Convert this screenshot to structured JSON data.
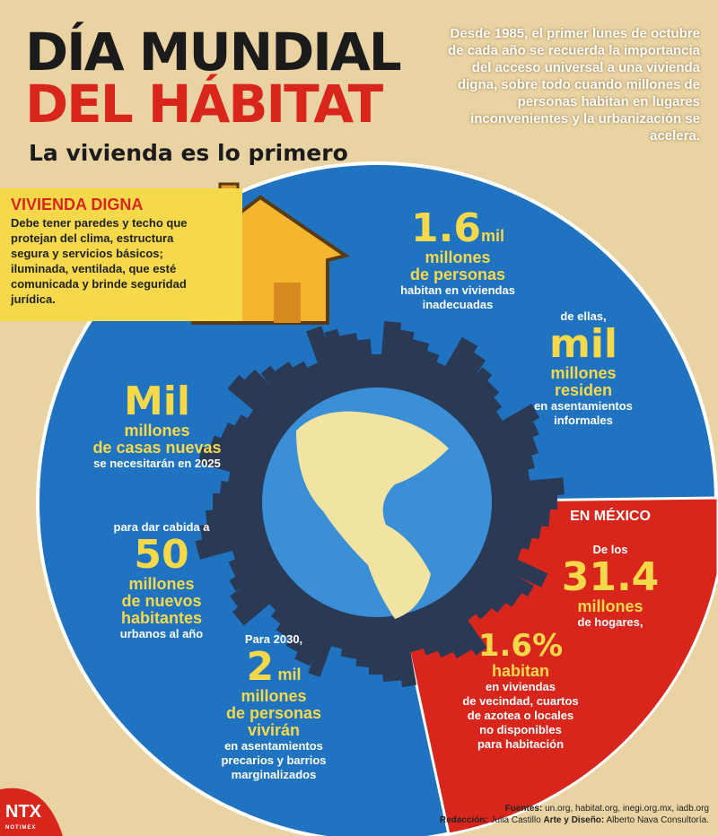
{
  "header": {
    "title_line1": "DÍA MUNDIAL",
    "title_line2": "DEL HÁBITAT",
    "subtitle": "La vivienda es lo primero",
    "intro": "Desde 1985, el primer lunes de octubre de cada año se recuerda la importancia del acceso universal a una vivienda digna, sobre todo cuando millones de personas habitan en lugares inconvenientes y la urbanización se acelera."
  },
  "vivienda": {
    "title": "VIVIENDA DIGNA",
    "text": "Debe tener paredes y techo que protejan del clima, estructura segura y servicios básicos; iluminada, ventilada, que esté comunicada y brinde seguridad jurídica."
  },
  "stats": {
    "s1": {
      "num": "1.6",
      "unit": "mil",
      "l1": "millones",
      "l2": "de personas",
      "l3": "habitan en viviendas",
      "l4": "inadecuadas"
    },
    "s2": {
      "pre": "de ellas,",
      "num": "mil",
      "l1": "millones",
      "l2": "residen",
      "l3": "en asentamientos",
      "l4": "informales"
    },
    "s3": {
      "num": "Mil",
      "l1": "millones",
      "l2": "de casas nuevas",
      "l3": "se necesitarán en 2025"
    },
    "s4": {
      "pre": "para dar cabida a",
      "num": "50",
      "l1": "millones",
      "l2": "de nuevos",
      "l3": "habitantes",
      "l4": "urbanos al año"
    },
    "s5": {
      "pre": "Para 2030,",
      "num": "2",
      "unit": "mil",
      "l1": "millones",
      "l2": "de personas",
      "l3": "vivirán",
      "l4": "en asentamientos",
      "l5": "precarios y barrios",
      "l6": "marginalizados"
    }
  },
  "mexico": {
    "title": "EN MÉXICO",
    "pre": "De los",
    "num": "31.4",
    "l1": "millones",
    "l2": "de hogares,",
    "num2": "1.6%",
    "l3": "habitan",
    "l4": "en viviendas",
    "l5": "de vecindad, cuartos",
    "l6": "de azotea o locales",
    "l7": "no disponibles",
    "l8": "para habitación"
  },
  "footer": {
    "fuentes_label": "Fuentes:",
    "fuentes": "un.org, habitat.org, inegi.org.mx, iadb.org",
    "redaccion_label": "Redacción:",
    "redaccion": "Julia Castillo",
    "arte_label": "Arte y Diseño:",
    "arte": "Alberto Nava Consultoría.",
    "logo": "NTX",
    "logo_sub": "NOTIMEX"
  },
  "colors": {
    "background": "#e9d3a3",
    "blue": "#1f73c0",
    "red": "#d9261c",
    "yellow": "#f6d94b",
    "city": "#2a3a55"
  }
}
